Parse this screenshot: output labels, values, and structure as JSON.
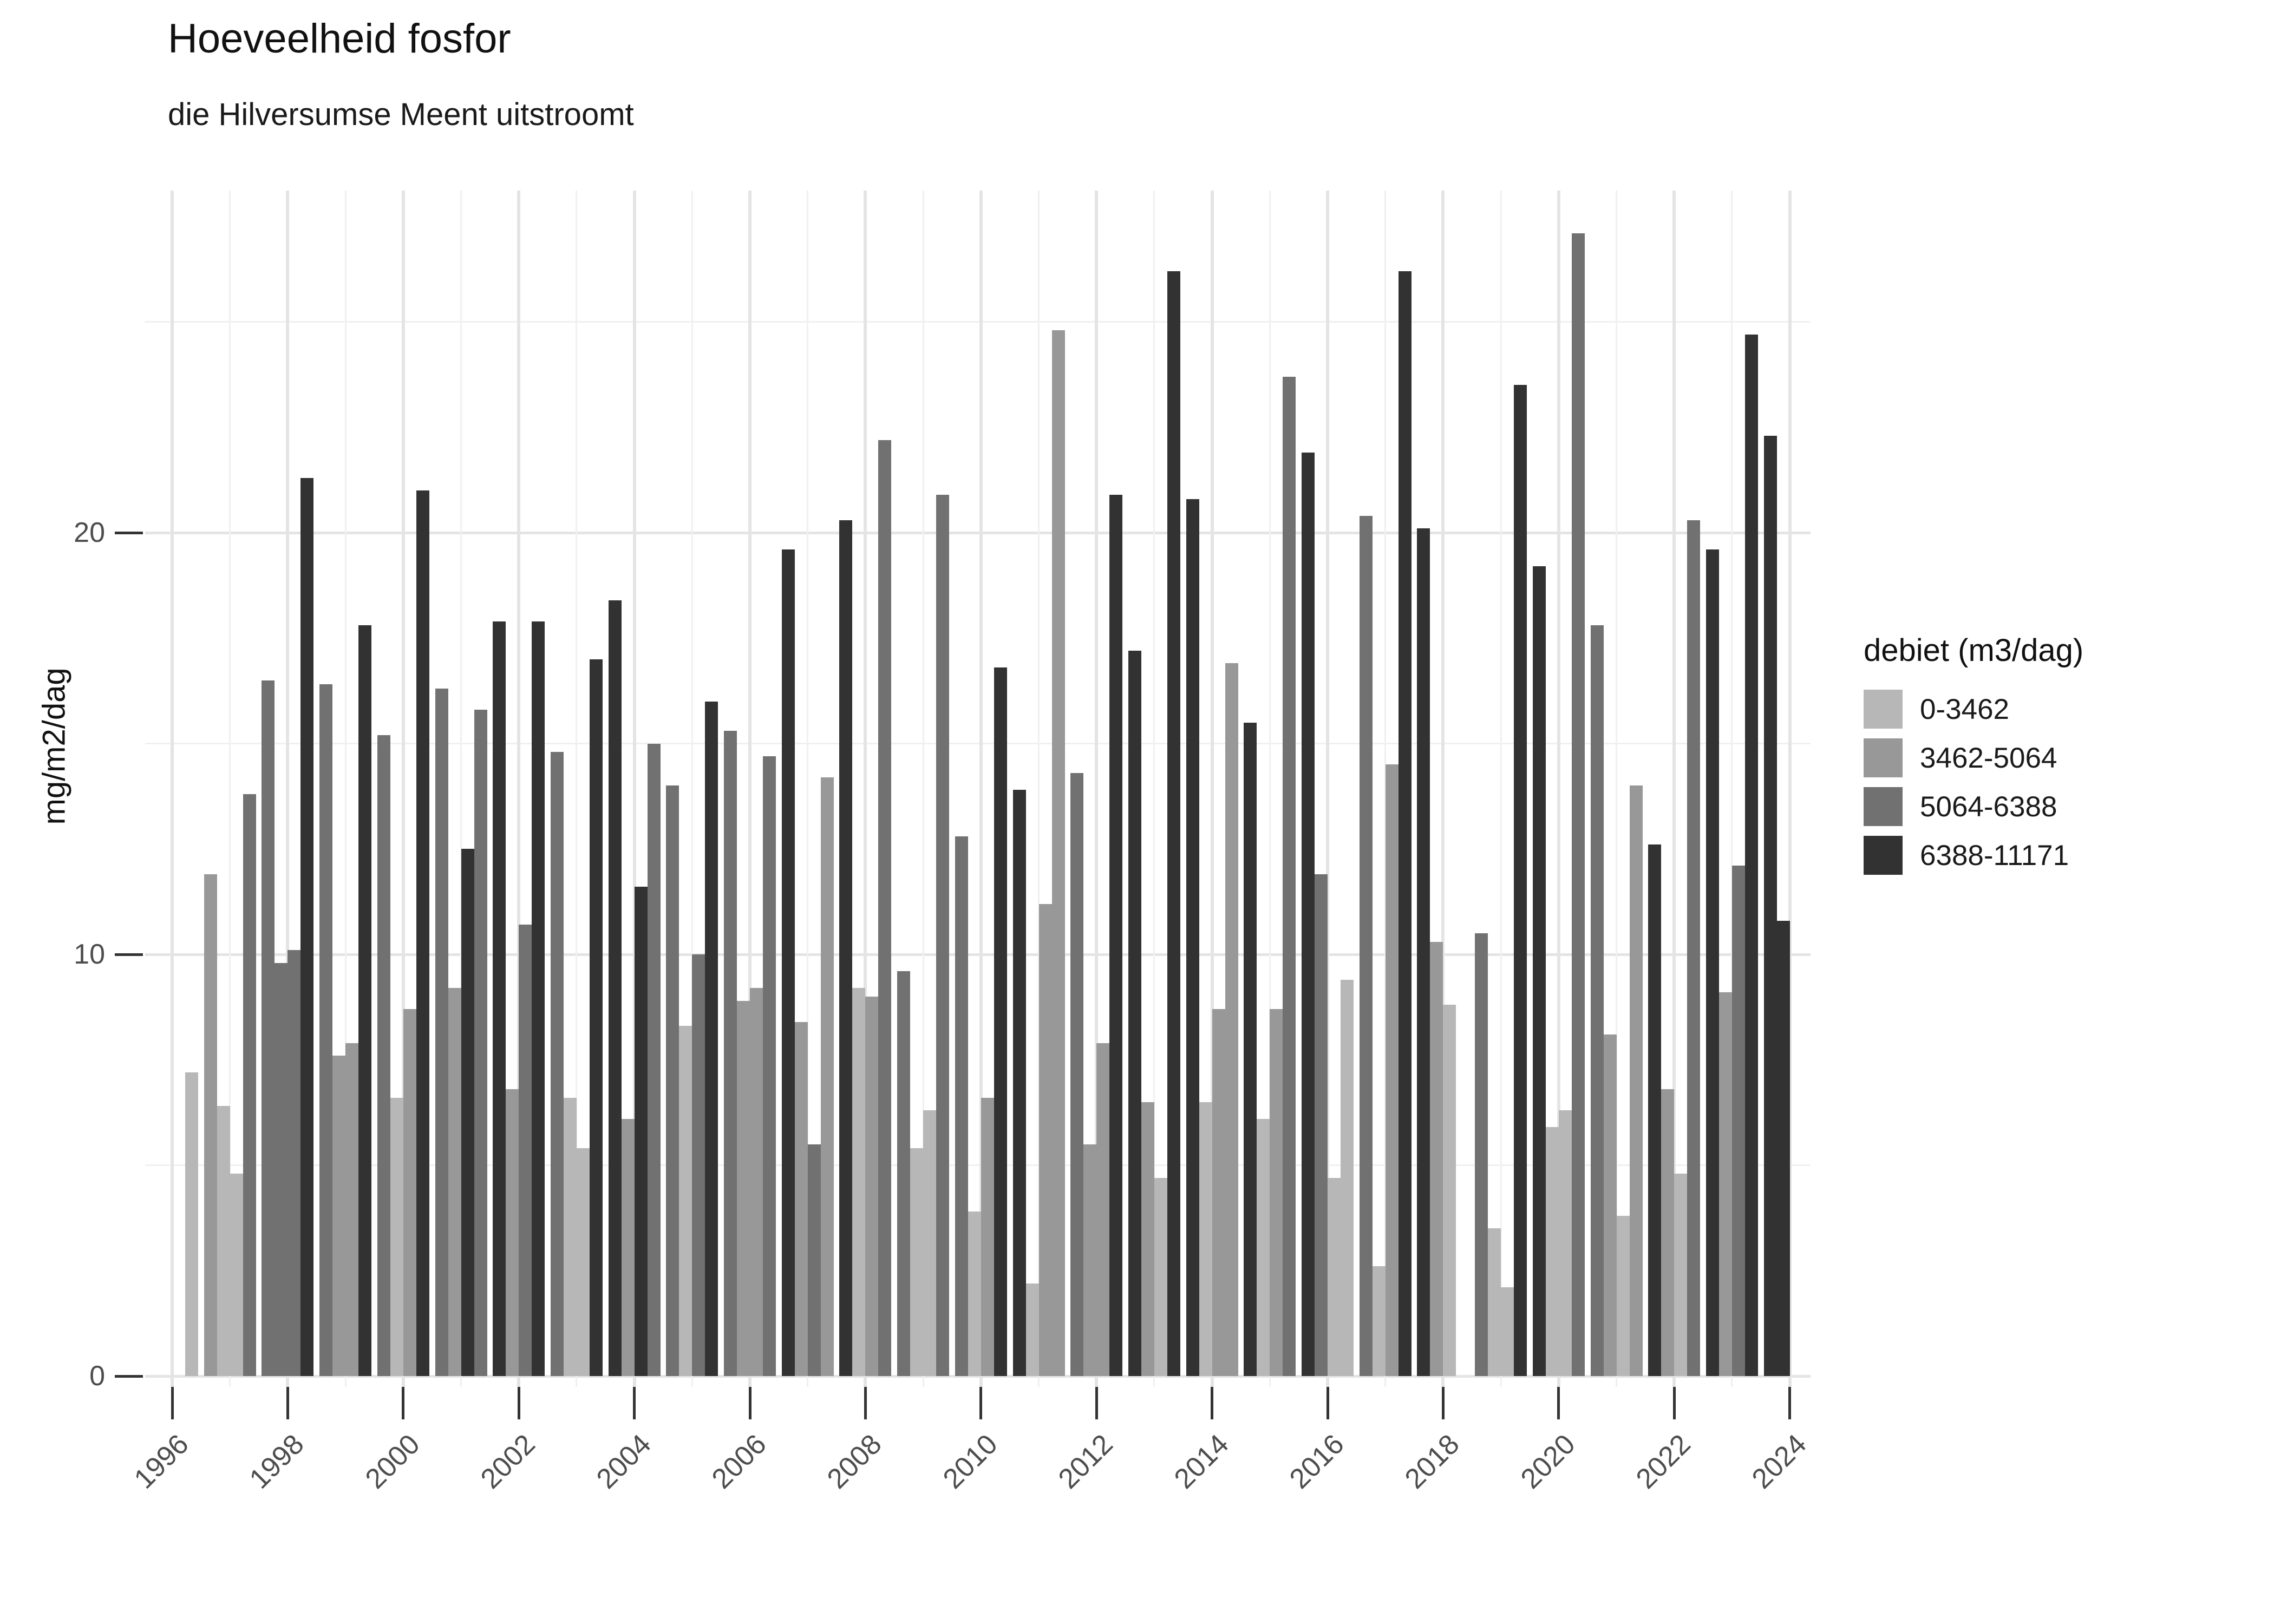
{
  "header": {
    "title": "Hoeveelheid fosfor",
    "subtitle": "die Hilversumse Meent uitstroomt"
  },
  "chart_data": {
    "type": "bar",
    "title": "Hoeveelheid fosfor",
    "subtitle": "die Hilversumse Meent uitstroomt",
    "xlabel": "",
    "ylabel": "mg/m2/dag",
    "ylim": [
      0,
      28
    ],
    "grid": "on",
    "y_major_ticks": [
      0,
      10,
      20
    ],
    "y_minor_gridlines": [
      5,
      15,
      25
    ],
    "x_tick_years": [
      1996,
      1998,
      2000,
      2002,
      2004,
      2006,
      2008,
      2010,
      2012,
      2014,
      2016,
      2018,
      2020,
      2022,
      2024
    ],
    "legend": {
      "title": "debiet (m3/dag)",
      "position": "right",
      "categories": [
        {
          "label": "0-3462",
          "color": "#b7b7b7"
        },
        {
          "label": "3462-5064",
          "color": "#989898"
        },
        {
          "label": "5064-6388",
          "color": "#717171"
        },
        {
          "label": "6388-11171",
          "color": "#323232"
        }
      ]
    },
    "bars_per_year": 4,
    "years": [
      {
        "year": 1996,
        "quarters": [
          null,
          null,
          null,
          {
            "c": 0,
            "v": 7.2
          }
        ]
      },
      {
        "year": 1997,
        "quarters": [
          {
            "c": 1,
            "v": 11.9
          },
          {
            "c": 0,
            "v": 6.4
          },
          {
            "c": 0,
            "v": 4.8
          },
          {
            "c": 2,
            "v": 13.8
          }
        ]
      },
      {
        "year": 1998,
        "quarters": [
          {
            "c": 2,
            "v": 16.5
          },
          {
            "c": 2,
            "v": 9.8
          },
          {
            "c": 2,
            "v": 10.1
          },
          {
            "c": 3,
            "v": 21.3
          }
        ]
      },
      {
        "year": 1999,
        "quarters": [
          {
            "c": 2,
            "v": 16.4
          },
          {
            "c": 1,
            "v": 7.6
          },
          {
            "c": 1,
            "v": 7.9
          },
          {
            "c": 3,
            "v": 17.8
          }
        ]
      },
      {
        "year": 2000,
        "quarters": [
          {
            "c": 2,
            "v": 15.2
          },
          {
            "c": 0,
            "v": 6.6
          },
          {
            "c": 1,
            "v": 8.7
          },
          {
            "c": 3,
            "v": 21.0
          }
        ]
      },
      {
        "year": 2001,
        "quarters": [
          {
            "c": 2,
            "v": 16.3
          },
          {
            "c": 1,
            "v": 9.2
          },
          {
            "c": 3,
            "v": 12.5
          },
          {
            "c": 2,
            "v": 15.8
          }
        ]
      },
      {
        "year": 2002,
        "quarters": [
          {
            "c": 3,
            "v": 17.9
          },
          {
            "c": 1,
            "v": 6.8
          },
          {
            "c": 2,
            "v": 10.7
          },
          {
            "c": 3,
            "v": 17.9
          }
        ]
      },
      {
        "year": 2003,
        "quarters": [
          {
            "c": 2,
            "v": 14.8
          },
          {
            "c": 0,
            "v": 6.6
          },
          {
            "c": 0,
            "v": 5.4
          },
          {
            "c": 3,
            "v": 17.0
          }
        ]
      },
      {
        "year": 2004,
        "quarters": [
          {
            "c": 3,
            "v": 18.4
          },
          {
            "c": 1,
            "v": 6.1
          },
          {
            "c": 3,
            "v": 11.6
          },
          {
            "c": 2,
            "v": 15.0
          }
        ]
      },
      {
        "year": 2005,
        "quarters": [
          {
            "c": 2,
            "v": 14.0
          },
          {
            "c": 0,
            "v": 8.3
          },
          {
            "c": 2,
            "v": 10.0
          },
          {
            "c": 3,
            "v": 16.0
          }
        ]
      },
      {
        "year": 2006,
        "quarters": [
          {
            "c": 2,
            "v": 15.3
          },
          {
            "c": 1,
            "v": 8.9
          },
          {
            "c": 1,
            "v": 9.2
          },
          {
            "c": 2,
            "v": 14.7
          }
        ]
      },
      {
        "year": 2007,
        "quarters": [
          {
            "c": 3,
            "v": 19.6
          },
          {
            "c": 1,
            "v": 8.4
          },
          {
            "c": 2,
            "v": 5.5
          },
          {
            "c": 1,
            "v": 14.2
          }
        ]
      },
      {
        "year": 2008,
        "quarters": [
          {
            "c": 3,
            "v": 20.3
          },
          {
            "c": 0,
            "v": 9.2
          },
          {
            "c": 1,
            "v": 9.0
          },
          {
            "c": 2,
            "v": 22.2
          }
        ]
      },
      {
        "year": 2009,
        "quarters": [
          {
            "c": 2,
            "v": 9.6
          },
          {
            "c": 0,
            "v": 5.4
          },
          {
            "c": 0,
            "v": 6.3
          },
          {
            "c": 2,
            "v": 20.9
          }
        ]
      },
      {
        "year": 2010,
        "quarters": [
          {
            "c": 2,
            "v": 12.8
          },
          {
            "c": 0,
            "v": 3.9
          },
          {
            "c": 1,
            "v": 6.6
          },
          {
            "c": 3,
            "v": 16.8
          }
        ]
      },
      {
        "year": 2011,
        "quarters": [
          {
            "c": 3,
            "v": 13.9
          },
          {
            "c": 0,
            "v": 2.2
          },
          {
            "c": 1,
            "v": 11.2
          },
          {
            "c": 1,
            "v": 24.8
          }
        ]
      },
      {
        "year": 2012,
        "quarters": [
          {
            "c": 2,
            "v": 14.3
          },
          {
            "c": 1,
            "v": 5.5
          },
          {
            "c": 1,
            "v": 7.9
          },
          {
            "c": 3,
            "v": 20.9
          }
        ]
      },
      {
        "year": 2013,
        "quarters": [
          {
            "c": 3,
            "v": 17.2
          },
          {
            "c": 1,
            "v": 6.5
          },
          {
            "c": 0,
            "v": 4.7
          },
          {
            "c": 3,
            "v": 26.2
          }
        ]
      },
      {
        "year": 2014,
        "quarters": [
          {
            "c": 3,
            "v": 20.8
          },
          {
            "c": 0,
            "v": 6.5
          },
          {
            "c": 1,
            "v": 8.7
          },
          {
            "c": 1,
            "v": 16.9
          }
        ]
      },
      {
        "year": 2015,
        "quarters": [
          {
            "c": 3,
            "v": 15.5
          },
          {
            "c": 0,
            "v": 6.1
          },
          {
            "c": 1,
            "v": 8.7
          },
          {
            "c": 2,
            "v": 23.7
          }
        ]
      },
      {
        "year": 2016,
        "quarters": [
          {
            "c": 3,
            "v": 21.9
          },
          {
            "c": 2,
            "v": 11.9
          },
          {
            "c": 0,
            "v": 4.7
          },
          {
            "c": 0,
            "v": 9.4
          }
        ]
      },
      {
        "year": 2017,
        "quarters": [
          {
            "c": 2,
            "v": 20.4
          },
          {
            "c": 0,
            "v": 2.6
          },
          {
            "c": 1,
            "v": 14.5
          },
          {
            "c": 3,
            "v": 26.2
          }
        ]
      },
      {
        "year": 2018,
        "quarters": [
          {
            "c": 3,
            "v": 20.1
          },
          {
            "c": 1,
            "v": 10.3
          },
          {
            "c": 0,
            "v": 8.8
          },
          null
        ]
      },
      {
        "year": 2019,
        "quarters": [
          {
            "c": 2,
            "v": 10.5
          },
          {
            "c": 0,
            "v": 3.5
          },
          {
            "c": 0,
            "v": 2.1
          },
          {
            "c": 3,
            "v": 23.5
          }
        ]
      },
      {
        "year": 2020,
        "quarters": [
          {
            "c": 3,
            "v": 19.2
          },
          {
            "c": 0,
            "v": 5.9
          },
          {
            "c": 0,
            "v": 6.3
          },
          {
            "c": 2,
            "v": 27.1
          }
        ]
      },
      {
        "year": 2021,
        "quarters": [
          {
            "c": 2,
            "v": 17.8
          },
          {
            "c": 1,
            "v": 8.1
          },
          {
            "c": 0,
            "v": 3.8
          },
          {
            "c": 1,
            "v": 14.0
          }
        ]
      },
      {
        "year": 2022,
        "quarters": [
          {
            "c": 3,
            "v": 12.6
          },
          {
            "c": 1,
            "v": 6.8
          },
          {
            "c": 0,
            "v": 4.8
          },
          {
            "c": 2,
            "v": 20.3
          }
        ]
      },
      {
        "year": 2023,
        "quarters": [
          {
            "c": 3,
            "v": 19.6
          },
          {
            "c": 1,
            "v": 9.1
          },
          {
            "c": 2,
            "v": 12.1
          },
          {
            "c": 3,
            "v": 24.7
          }
        ]
      },
      {
        "year": 2024,
        "quarters": [
          {
            "c": 3,
            "v": 22.3
          },
          {
            "c": 3,
            "v": 10.8
          },
          null,
          null
        ]
      }
    ]
  }
}
